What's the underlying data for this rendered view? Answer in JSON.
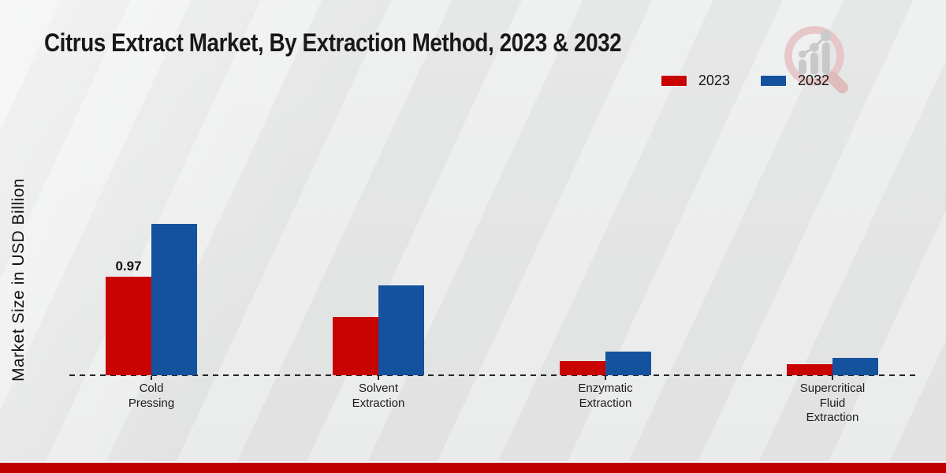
{
  "page": {
    "background_color": "#e9eaea",
    "footer_stripe_color": "#c00000",
    "watermark_icon": "magnifier-bar-chart-logo"
  },
  "chart_data": {
    "type": "bar",
    "title": "Citrus Extract Market, By Extraction Method, 2023 & 2032",
    "xlabel": "",
    "ylabel": "Market Size in USD Billion",
    "categories": [
      "Cold\nPressing",
      "Solvent\nExtraction",
      "Enzymatic\nExtraction",
      "Supercritical\nFluid\nExtraction"
    ],
    "series": [
      {
        "name": "2023",
        "color": "#c90202",
        "values": [
          0.97,
          0.57,
          0.14,
          0.11
        ],
        "data_labels": [
          "0.97",
          "",
          "",
          ""
        ]
      },
      {
        "name": "2032",
        "color": "#15529e",
        "values": [
          1.49,
          0.88,
          0.23,
          0.17
        ],
        "data_labels": [
          "",
          "",
          "",
          ""
        ]
      }
    ],
    "ylim": [
      0,
      1.65
    ],
    "grid": false,
    "y_axis_ticks_visible": false,
    "zero_line_style": "dashed",
    "legend_position": "top-right"
  }
}
